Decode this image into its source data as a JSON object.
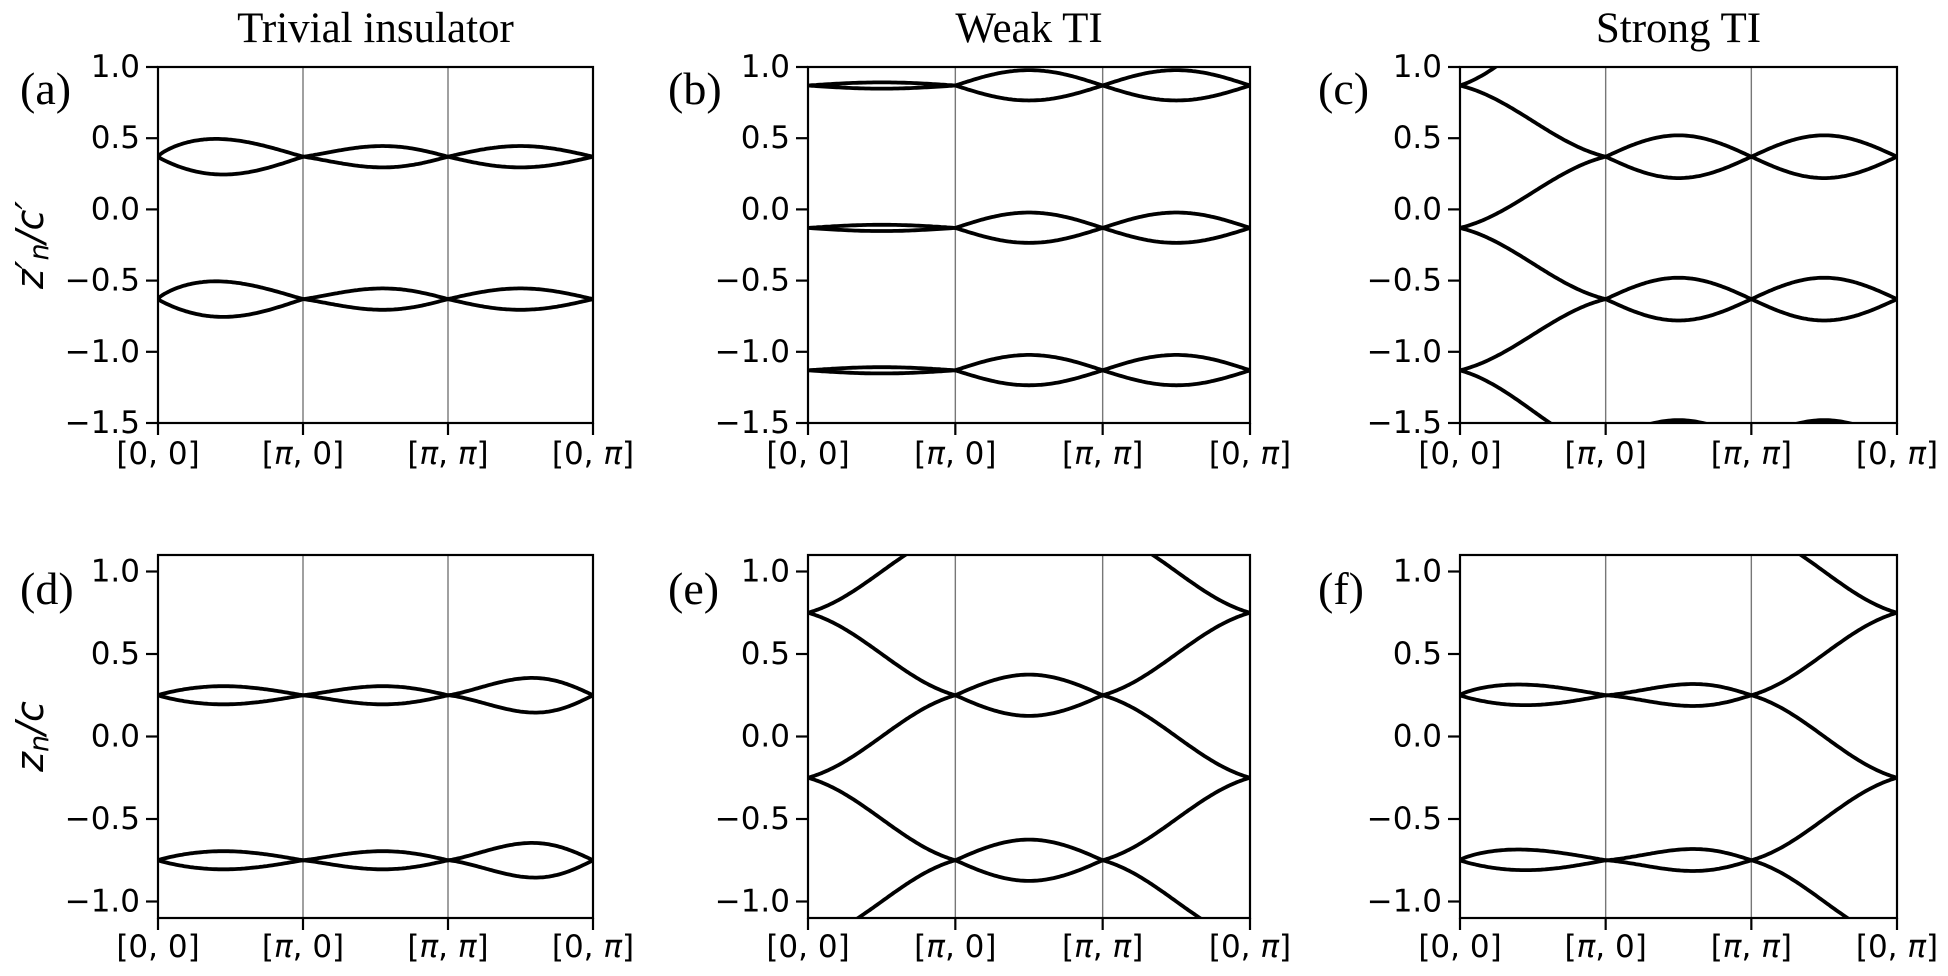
{
  "figure": {
    "background": "#ffffff",
    "curve_color": "#000000",
    "grid_color": "#777777",
    "spine_color": "#000000"
  },
  "chart_data": {
    "type": "line",
    "description": "Hybrid Wannier center flow along the 2D BZ path for trivial insulator, weak TI and strong TI",
    "column_titles": [
      "Trivial insulator",
      "Weak TI",
      "Strong TI"
    ],
    "x_tick_labels": [
      "[0, 0]",
      "[π, 0]",
      "[π, π]",
      "[0, π]"
    ],
    "x_segments": 3,
    "grid_x": [
      1,
      2
    ],
    "rows": [
      {
        "ylabel_text": "z′n/c′",
        "ylabel_tspans": [
          {
            "t": "z′",
            "sub": false
          },
          {
            "t": "n",
            "sub": true
          },
          {
            "t": "/c′",
            "sub": false
          }
        ],
        "ylim": [
          -1.5,
          1.0
        ],
        "yticks": [
          1.0,
          0.5,
          0.0,
          -0.5,
          -1.0,
          -1.5
        ],
        "ytick_labels": [
          "1.0",
          "0.5",
          "0.0",
          "−0.5",
          "−1.0",
          "−1.5"
        ]
      },
      {
        "ylabel_text": "zn/c",
        "ylabel_tspans": [
          {
            "t": "z",
            "sub": false
          },
          {
            "t": "n",
            "sub": true
          },
          {
            "t": "/c",
            "sub": false
          }
        ],
        "ylim": [
          -1.1,
          1.1
        ],
        "yticks": [
          1.0,
          0.5,
          0.0,
          -0.5,
          -1.0
        ],
        "ytick_labels": [
          "1.0",
          "0.5",
          "0.0",
          "−0.5",
          "−1.0"
        ]
      }
    ],
    "panels": [
      {
        "label": "(a)",
        "row": 0,
        "col": 0,
        "title": "Trivial insulator",
        "band_centers": [
          0.37,
          -0.63
        ],
        "curves": [
          {
            "shape": "lobe",
            "x0": 0,
            "x1": 1,
            "center": 0.37,
            "amp": 0.125,
            "peak": 0.4
          },
          {
            "shape": "lobe",
            "x0": 0,
            "x1": 1,
            "center": 0.37,
            "amp": -0.125,
            "peak": 0.45
          },
          {
            "shape": "lobe",
            "x0": 1,
            "x1": 2,
            "center": 0.37,
            "amp": 0.075,
            "peak": 0.55
          },
          {
            "shape": "lobe",
            "x0": 1,
            "x1": 2,
            "center": 0.37,
            "amp": -0.075,
            "peak": 0.55
          },
          {
            "shape": "lobe",
            "x0": 2,
            "x1": 3,
            "center": 0.37,
            "amp": 0.075,
            "peak": 0.5
          },
          {
            "shape": "lobe",
            "x0": 2,
            "x1": 3,
            "center": 0.37,
            "amp": -0.075,
            "peak": 0.5
          },
          {
            "shape": "lobe",
            "x0": 0,
            "x1": 1,
            "center": -0.63,
            "amp": 0.125,
            "peak": 0.4
          },
          {
            "shape": "lobe",
            "x0": 0,
            "x1": 1,
            "center": -0.63,
            "amp": -0.125,
            "peak": 0.45
          },
          {
            "shape": "lobe",
            "x0": 1,
            "x1": 2,
            "center": -0.63,
            "amp": 0.075,
            "peak": 0.55
          },
          {
            "shape": "lobe",
            "x0": 1,
            "x1": 2,
            "center": -0.63,
            "amp": -0.075,
            "peak": 0.55
          },
          {
            "shape": "lobe",
            "x0": 2,
            "x1": 3,
            "center": -0.63,
            "amp": 0.075,
            "peak": 0.5
          },
          {
            "shape": "lobe",
            "x0": 2,
            "x1": 3,
            "center": -0.63,
            "amp": -0.075,
            "peak": 0.5
          }
        ]
      },
      {
        "label": "(b)",
        "row": 0,
        "col": 1,
        "title": "Weak TI",
        "band_centers": [
          0.87,
          -0.13,
          -1.13
        ],
        "curves": [
          {
            "shape": "lobe",
            "x0": 0,
            "x1": 1,
            "center": 0.87,
            "amp": 0.022,
            "peak": 0.5
          },
          {
            "shape": "lobe",
            "x0": 0,
            "x1": 1,
            "center": 0.87,
            "amp": -0.022,
            "peak": 0.5
          },
          {
            "shape": "lobe",
            "x0": 1,
            "x1": 2,
            "center": 0.87,
            "amp": 0.108,
            "peak": 0.5
          },
          {
            "shape": "lobe",
            "x0": 1,
            "x1": 2,
            "center": 0.87,
            "amp": -0.105,
            "peak": 0.5
          },
          {
            "shape": "lobe",
            "x0": 2,
            "x1": 3,
            "center": 0.87,
            "amp": 0.108,
            "peak": 0.5
          },
          {
            "shape": "lobe",
            "x0": 2,
            "x1": 3,
            "center": 0.87,
            "amp": -0.105,
            "peak": 0.5
          },
          {
            "shape": "lobe",
            "x0": 0,
            "x1": 1,
            "center": -0.13,
            "amp": 0.022,
            "peak": 0.5
          },
          {
            "shape": "lobe",
            "x0": 0,
            "x1": 1,
            "center": -0.13,
            "amp": -0.022,
            "peak": 0.5
          },
          {
            "shape": "lobe",
            "x0": 1,
            "x1": 2,
            "center": -0.13,
            "amp": 0.108,
            "peak": 0.5
          },
          {
            "shape": "lobe",
            "x0": 1,
            "x1": 2,
            "center": -0.13,
            "amp": -0.105,
            "peak": 0.5
          },
          {
            "shape": "lobe",
            "x0": 2,
            "x1": 3,
            "center": -0.13,
            "amp": 0.108,
            "peak": 0.5
          },
          {
            "shape": "lobe",
            "x0": 2,
            "x1": 3,
            "center": -0.13,
            "amp": -0.105,
            "peak": 0.5
          },
          {
            "shape": "lobe",
            "x0": 0,
            "x1": 1,
            "center": -1.13,
            "amp": 0.022,
            "peak": 0.5
          },
          {
            "shape": "lobe",
            "x0": 0,
            "x1": 1,
            "center": -1.13,
            "amp": -0.022,
            "peak": 0.5
          },
          {
            "shape": "lobe",
            "x0": 1,
            "x1": 2,
            "center": -1.13,
            "amp": 0.108,
            "peak": 0.5
          },
          {
            "shape": "lobe",
            "x0": 1,
            "x1": 2,
            "center": -1.13,
            "amp": -0.105,
            "peak": 0.5
          },
          {
            "shape": "lobe",
            "x0": 2,
            "x1": 3,
            "center": -1.13,
            "amp": 0.108,
            "peak": 0.5
          },
          {
            "shape": "lobe",
            "x0": 2,
            "x1": 3,
            "center": -1.13,
            "amp": -0.105,
            "peak": 0.5
          }
        ]
      },
      {
        "label": "(c)",
        "row": 0,
        "col": 2,
        "title": "Strong TI",
        "band_centers": [
          0.87,
          -0.13,
          -1.13
        ],
        "curves": [
          {
            "shape": "flow",
            "x0": 0,
            "x1": 1,
            "y0": 0.87,
            "y1": 1.55
          },
          {
            "shape": "flow",
            "x0": 0,
            "x1": 1,
            "y0": 0.87,
            "y1": 0.37
          },
          {
            "shape": "flow",
            "x0": 0,
            "x1": 1,
            "y0": -0.13,
            "y1": 0.37
          },
          {
            "shape": "flow",
            "x0": 0,
            "x1": 1,
            "y0": -0.13,
            "y1": -0.63
          },
          {
            "shape": "flow",
            "x0": 0,
            "x1": 1,
            "y0": -1.13,
            "y1": -0.63
          },
          {
            "shape": "flow",
            "x0": 0,
            "x1": 1,
            "y0": -1.13,
            "y1": -1.7
          },
          {
            "shape": "lobe",
            "x0": 1,
            "x1": 2,
            "center": 0.37,
            "amp": 0.15,
            "peak": 0.5
          },
          {
            "shape": "lobe",
            "x0": 1,
            "x1": 2,
            "center": 0.37,
            "amp": -0.15,
            "peak": 0.5
          },
          {
            "shape": "lobe",
            "x0": 1,
            "x1": 2,
            "center": -0.63,
            "amp": 0.15,
            "peak": 0.5
          },
          {
            "shape": "lobe",
            "x0": 1,
            "x1": 2,
            "center": -0.63,
            "amp": -0.15,
            "peak": 0.5
          },
          {
            "shape": "lobe",
            "x0": 1,
            "x1": 2,
            "center": -1.63,
            "amp": 0.15,
            "peak": 0.5
          },
          {
            "shape": "lobe",
            "x0": 2,
            "x1": 3,
            "center": 0.37,
            "amp": 0.15,
            "peak": 0.5
          },
          {
            "shape": "lobe",
            "x0": 2,
            "x1": 3,
            "center": 0.37,
            "amp": -0.15,
            "peak": 0.5
          },
          {
            "shape": "lobe",
            "x0": 2,
            "x1": 3,
            "center": -0.63,
            "amp": 0.15,
            "peak": 0.5
          },
          {
            "shape": "lobe",
            "x0": 2,
            "x1": 3,
            "center": -0.63,
            "amp": -0.15,
            "peak": 0.5
          },
          {
            "shape": "lobe",
            "x0": 2,
            "x1": 3,
            "center": -1.63,
            "amp": 0.15,
            "peak": 0.5
          }
        ]
      },
      {
        "label": "(d)",
        "row": 1,
        "col": 0,
        "title": "Trivial insulator",
        "band_centers": [
          0.25,
          -0.75
        ],
        "curves": [
          {
            "shape": "lobe",
            "x0": 0,
            "x1": 1,
            "center": 0.25,
            "amp": 0.055,
            "peak": 0.45
          },
          {
            "shape": "lobe",
            "x0": 0,
            "x1": 1,
            "center": 0.25,
            "amp": -0.055,
            "peak": 0.45
          },
          {
            "shape": "lobe",
            "x0": 1,
            "x1": 2,
            "center": 0.25,
            "amp": 0.055,
            "peak": 0.55
          },
          {
            "shape": "lobe",
            "x0": 1,
            "x1": 2,
            "center": 0.25,
            "amp": -0.055,
            "peak": 0.55
          },
          {
            "shape": "lobe",
            "x0": 2,
            "x1": 3,
            "center": 0.25,
            "amp": 0.105,
            "peak": 0.58
          },
          {
            "shape": "lobe",
            "x0": 2,
            "x1": 3,
            "center": 0.25,
            "amp": -0.105,
            "peak": 0.6
          },
          {
            "shape": "lobe",
            "x0": 0,
            "x1": 1,
            "center": -0.75,
            "amp": 0.055,
            "peak": 0.45
          },
          {
            "shape": "lobe",
            "x0": 0,
            "x1": 1,
            "center": -0.75,
            "amp": -0.055,
            "peak": 0.45
          },
          {
            "shape": "lobe",
            "x0": 1,
            "x1": 2,
            "center": -0.75,
            "amp": 0.055,
            "peak": 0.55
          },
          {
            "shape": "lobe",
            "x0": 1,
            "x1": 2,
            "center": -0.75,
            "amp": -0.055,
            "peak": 0.55
          },
          {
            "shape": "lobe",
            "x0": 2,
            "x1": 3,
            "center": -0.75,
            "amp": 0.105,
            "peak": 0.58
          },
          {
            "shape": "lobe",
            "x0": 2,
            "x1": 3,
            "center": -0.75,
            "amp": -0.105,
            "peak": 0.6
          }
        ]
      },
      {
        "label": "(e)",
        "row": 1,
        "col": 1,
        "title": "Weak TI",
        "band_centers": [
          0.75,
          -0.25,
          -1.25
        ],
        "curves": [
          {
            "shape": "flow",
            "x0": 0,
            "x1": 1,
            "y0": 0.75,
            "y1": 1.25
          },
          {
            "shape": "flow",
            "x0": 0,
            "x1": 1,
            "y0": 0.75,
            "y1": 0.25
          },
          {
            "shape": "flow",
            "x0": 0,
            "x1": 1,
            "y0": -0.25,
            "y1": 0.25
          },
          {
            "shape": "flow",
            "x0": 0,
            "x1": 1,
            "y0": -0.25,
            "y1": -0.75
          },
          {
            "shape": "flow",
            "x0": 0,
            "x1": 1,
            "y0": -1.25,
            "y1": -0.75
          },
          {
            "shape": "lobe",
            "x0": 1,
            "x1": 2,
            "center": 0.25,
            "amp": 0.125,
            "peak": 0.5
          },
          {
            "shape": "lobe",
            "x0": 1,
            "x1": 2,
            "center": 0.25,
            "amp": -0.125,
            "peak": 0.5
          },
          {
            "shape": "lobe",
            "x0": 1,
            "x1": 2,
            "center": -0.75,
            "amp": 0.125,
            "peak": 0.5
          },
          {
            "shape": "lobe",
            "x0": 1,
            "x1": 2,
            "center": -0.75,
            "amp": -0.125,
            "peak": 0.5
          },
          {
            "shape": "flow",
            "x0": 2,
            "x1": 3,
            "y0": 0.25,
            "y1": 0.75
          },
          {
            "shape": "flow",
            "x0": 2,
            "x1": 3,
            "y0": 0.25,
            "y1": -0.25
          },
          {
            "shape": "flow",
            "x0": 2,
            "x1": 3,
            "y0": -0.75,
            "y1": -0.25
          },
          {
            "shape": "flow",
            "x0": 2,
            "x1": 3,
            "y0": -0.75,
            "y1": -1.25
          },
          {
            "shape": "flow",
            "x0": 2,
            "x1": 3,
            "y0": 1.25,
            "y1": 0.75
          }
        ]
      },
      {
        "label": "(f)",
        "row": 1,
        "col": 2,
        "title": "Strong TI",
        "band_centers": [
          0.25,
          -0.75
        ],
        "curves": [
          {
            "shape": "lobe",
            "x0": 0,
            "x1": 1,
            "center": 0.25,
            "amp": 0.065,
            "peak": 0.4
          },
          {
            "shape": "lobe",
            "x0": 0,
            "x1": 1,
            "center": 0.25,
            "amp": -0.06,
            "peak": 0.45
          },
          {
            "shape": "lobe",
            "x0": 0,
            "x1": 1,
            "center": -0.75,
            "amp": 0.065,
            "peak": 0.4
          },
          {
            "shape": "lobe",
            "x0": 0,
            "x1": 1,
            "center": -0.75,
            "amp": -0.06,
            "peak": 0.45
          },
          {
            "shape": "lobe",
            "x0": 1,
            "x1": 2,
            "center": 0.25,
            "amp": 0.068,
            "peak": 0.6
          },
          {
            "shape": "lobe",
            "x0": 1,
            "x1": 2,
            "center": 0.25,
            "amp": -0.065,
            "peak": 0.6
          },
          {
            "shape": "lobe",
            "x0": 1,
            "x1": 2,
            "center": -0.75,
            "amp": 0.068,
            "peak": 0.6
          },
          {
            "shape": "lobe",
            "x0": 1,
            "x1": 2,
            "center": -0.75,
            "amp": -0.065,
            "peak": 0.6
          },
          {
            "shape": "flow",
            "x0": 2,
            "x1": 3,
            "y0": 0.25,
            "y1": 0.75
          },
          {
            "shape": "flow",
            "x0": 2,
            "x1": 3,
            "y0": 0.25,
            "y1": -0.25
          },
          {
            "shape": "flow",
            "x0": 2,
            "x1": 3,
            "y0": -0.75,
            "y1": -0.25
          },
          {
            "shape": "flow",
            "x0": 2,
            "x1": 3,
            "y0": -0.75,
            "y1": -1.25
          },
          {
            "shape": "flow",
            "x0": 2,
            "x1": 3,
            "y0": 1.25,
            "y1": 0.75
          }
        ]
      }
    ]
  }
}
